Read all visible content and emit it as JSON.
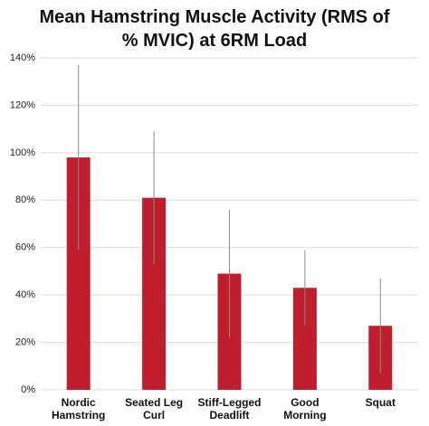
{
  "chart_data": {
    "type": "bar",
    "title": "Mean Hamstring Muscle Activity (RMS of % MVIC) at 6RM Load",
    "categories": [
      "Nordic Hamstring",
      "Seated Leg Curl",
      "Stiff-Legged Deadlift",
      "Good Morning",
      "Squat"
    ],
    "values": [
      98,
      81,
      49,
      43,
      27
    ],
    "errors": [
      39,
      28,
      27,
      16,
      20
    ],
    "color": "#be1e2d",
    "ylim": [
      0,
      140
    ],
    "yticks": [
      {
        "value": 0,
        "label": "0%"
      },
      {
        "value": 20,
        "label": "20%"
      },
      {
        "value": 40,
        "label": "40%"
      },
      {
        "value": 60,
        "label": "60%"
      },
      {
        "value": 80,
        "label": "80%"
      },
      {
        "value": 100,
        "label": "100%"
      },
      {
        "value": 120,
        "label": "120%"
      },
      {
        "value": 140,
        "label": "140%"
      }
    ],
    "grid": true
  }
}
